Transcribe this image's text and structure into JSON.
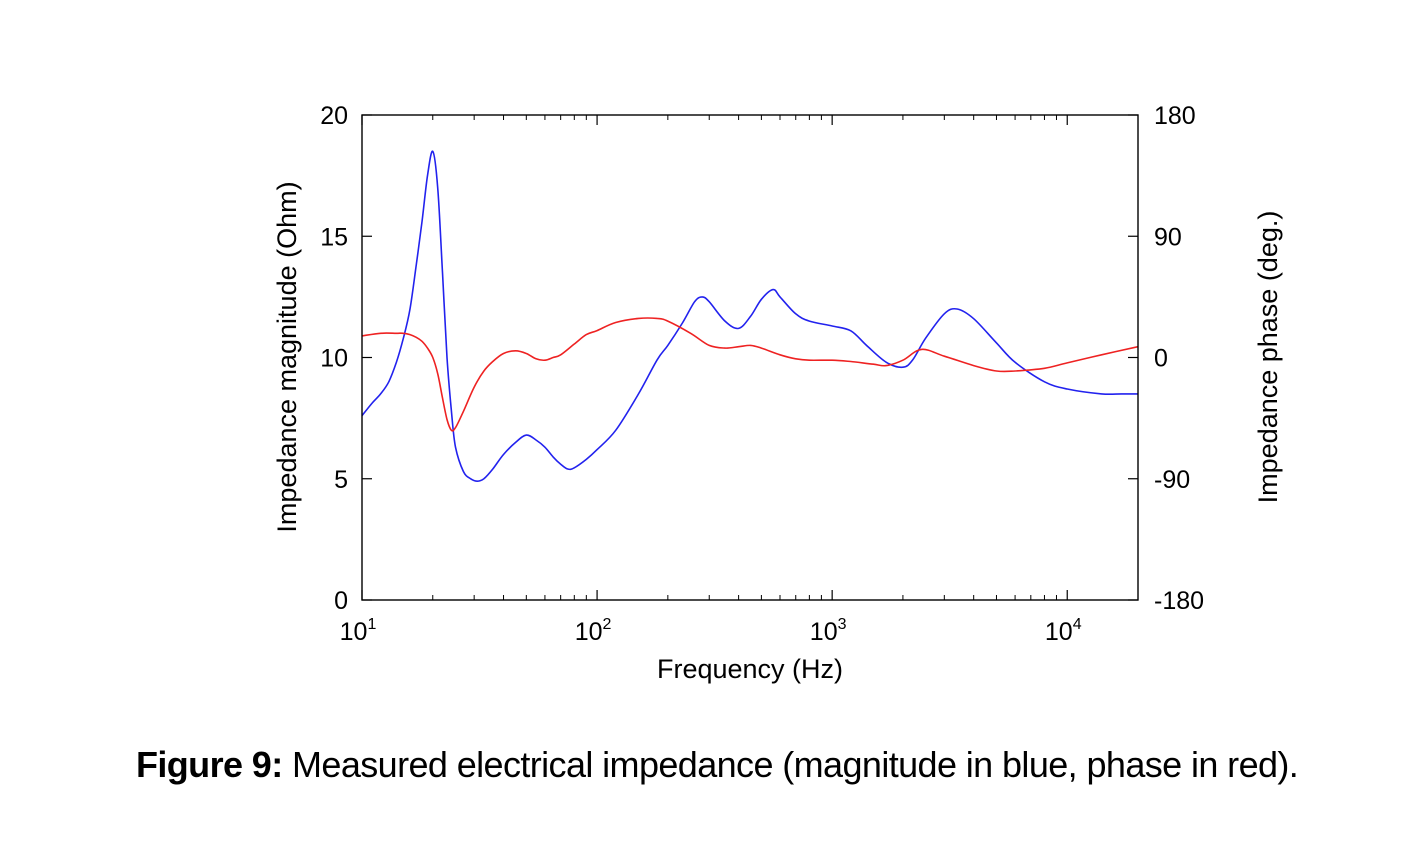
{
  "caption": {
    "label": "Figure 9:",
    "text": " Measured electrical impedance (magnitude in blue, phase in red)."
  },
  "chart_data": {
    "type": "line",
    "title": "",
    "xlabel": "Frequency (Hz)",
    "ylabel": "Impedance magnitude (Ohm)",
    "y2label": "Impedance phase (deg.)",
    "xscale": "log",
    "xlim": [
      10,
      20000
    ],
    "ylim": [
      0,
      20
    ],
    "y2lim": [
      -180,
      180
    ],
    "xticks": [
      {
        "value": 10,
        "base": "10",
        "exp": "1"
      },
      {
        "value": 100,
        "base": "10",
        "exp": "2"
      },
      {
        "value": 1000,
        "base": "10",
        "exp": "3"
      },
      {
        "value": 10000,
        "base": "10",
        "exp": "4"
      }
    ],
    "yticks": [
      0,
      5,
      10,
      15,
      20
    ],
    "y2ticks": [
      -180,
      -90,
      0,
      90,
      180
    ],
    "grid": false,
    "legend": "none",
    "series": [
      {
        "axis": "left",
        "color": "#2222ee",
        "x": [
          10,
          11,
          12,
          13,
          14,
          15,
          16,
          17,
          18,
          19,
          20,
          21,
          22,
          23,
          24,
          25,
          27,
          29,
          31,
          33,
          36,
          40,
          45,
          50,
          55,
          60,
          65,
          70,
          75,
          80,
          90,
          100,
          120,
          150,
          180,
          200,
          230,
          260,
          280,
          300,
          350,
          400,
          450,
          500,
          560,
          600,
          700,
          800,
          1000,
          1200,
          1400,
          1700,
          2000,
          2200,
          2500,
          3000,
          3400,
          4000,
          5000,
          6000,
          8000,
          10000,
          14000,
          17000,
          20000
        ],
        "y": [
          7.6,
          8.1,
          8.5,
          9.0,
          9.8,
          10.8,
          12.0,
          13.8,
          15.6,
          17.5,
          18.5,
          17.0,
          13.5,
          10.0,
          7.8,
          6.3,
          5.3,
          5.0,
          4.9,
          5.0,
          5.4,
          6.0,
          6.5,
          6.8,
          6.6,
          6.3,
          5.9,
          5.6,
          5.4,
          5.45,
          5.8,
          6.2,
          7.0,
          8.5,
          9.9,
          10.5,
          11.4,
          12.3,
          12.5,
          12.3,
          11.5,
          11.2,
          11.7,
          12.4,
          12.8,
          12.5,
          11.8,
          11.5,
          11.3,
          11.1,
          10.5,
          9.8,
          9.6,
          9.9,
          10.8,
          11.8,
          12.0,
          11.6,
          10.6,
          9.8,
          9.0,
          8.7,
          8.5,
          8.5,
          8.5
        ],
        "values_unit": "Ohm"
      },
      {
        "axis": "right",
        "color": "#ee2222",
        "x": [
          10,
          12,
          14,
          15,
          16,
          17,
          18,
          19,
          20,
          21,
          22,
          23,
          24,
          25,
          27,
          30,
          33,
          36,
          40,
          45,
          50,
          55,
          60,
          65,
          70,
          80,
          90,
          100,
          120,
          150,
          180,
          200,
          250,
          300,
          350,
          400,
          450,
          500,
          600,
          700,
          800,
          1000,
          1200,
          1500,
          1700,
          2000,
          2400,
          3000,
          4000,
          5000,
          6000,
          8000,
          10000,
          14000,
          20000
        ],
        "y": [
          16,
          18,
          18,
          18,
          17,
          15,
          12,
          7,
          0,
          -12,
          -30,
          -46,
          -54,
          -52,
          -40,
          -22,
          -10,
          -3,
          3,
          5,
          3,
          -1,
          -2,
          0,
          2,
          10,
          17,
          20,
          26,
          29,
          29,
          27,
          18,
          9,
          7,
          8,
          9,
          7,
          2,
          -1,
          -2,
          -2,
          -3,
          -5,
          -6,
          -2,
          6,
          1,
          -6,
          -10,
          -10,
          -8,
          -4,
          2,
          8
        ],
        "values_unit": "deg"
      }
    ]
  }
}
